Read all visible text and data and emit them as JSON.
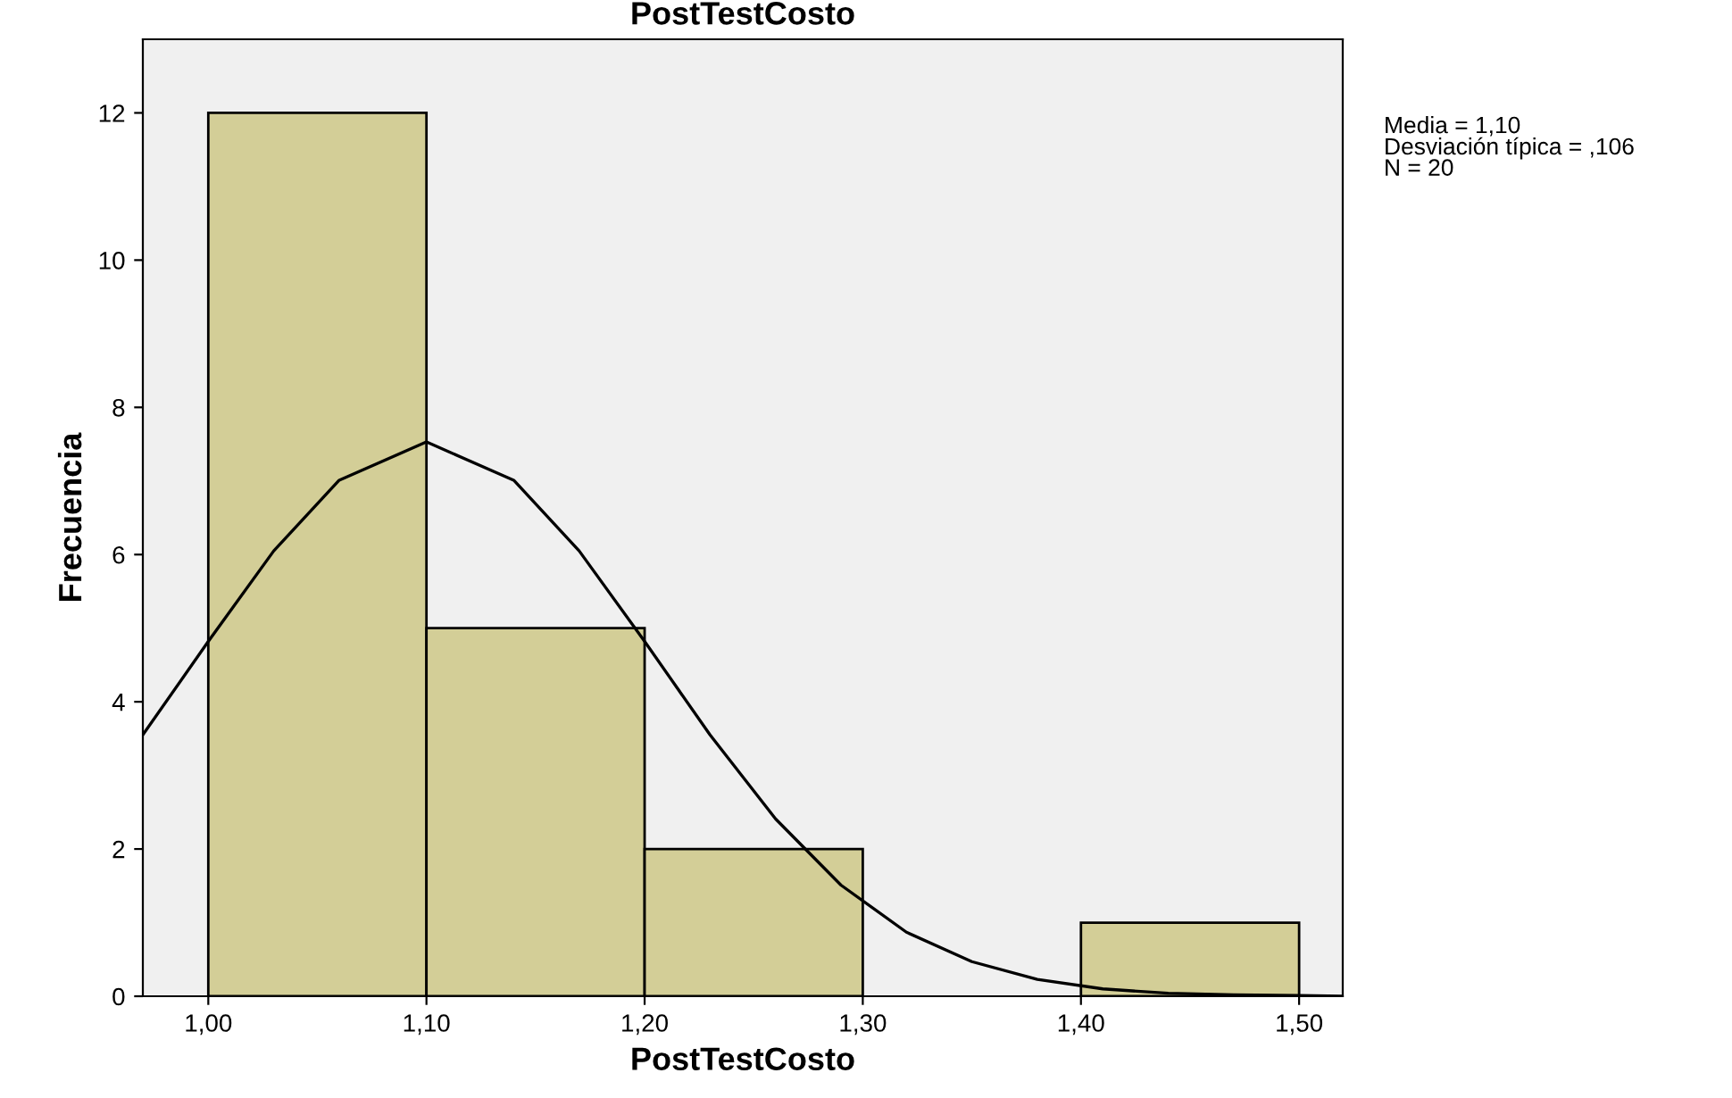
{
  "chart_data": {
    "type": "histogram",
    "title": "PostTestCosto",
    "xlabel": "PostTestCosto",
    "ylabel": "Frecuencia",
    "annotations": [
      "Media = 1,10\nDesviación típica = ,106\nN = 20"
    ],
    "series": [
      {
        "bins": [
          1.0,
          1.1,
          1.2,
          1.3,
          1.4,
          1.5
        ],
        "values": [
          12,
          5,
          2,
          0,
          1
        ],
        "color": "#d3ce97"
      },
      {
        "type": "line",
        "color": "#000000",
        "x": [
          0.97,
          1.0,
          1.03,
          1.06,
          1.1,
          1.14,
          1.17,
          1.2,
          1.23,
          1.26,
          1.29,
          1.32,
          1.35,
          1.38,
          1.41,
          1.44,
          1.47,
          1.5,
          1.52
        ],
        "values": [
          3.55,
          4.82,
          6.05,
          7.01,
          7.53,
          7.01,
          6.05,
          4.82,
          3.55,
          2.41,
          1.51,
          0.87,
          0.47,
          0.23,
          0.1,
          0.04,
          0.02,
          0.01,
          0.0
        ]
      }
    ],
    "xlim": [
      0.97,
      1.52
    ],
    "ylim": [
      0,
      13
    ],
    "xticks": [
      {
        "value": 1.0,
        "label": "1,00"
      },
      {
        "value": 1.1,
        "label": "1,10"
      },
      {
        "value": 1.2,
        "label": "1,20"
      },
      {
        "value": 1.3,
        "label": "1,30"
      },
      {
        "value": 1.4,
        "label": "1,40"
      },
      {
        "value": 1.5,
        "label": "1,50"
      }
    ],
    "yticks": [
      0,
      2,
      4,
      6,
      8,
      10,
      12
    ],
    "grid": false,
    "legend": false
  }
}
